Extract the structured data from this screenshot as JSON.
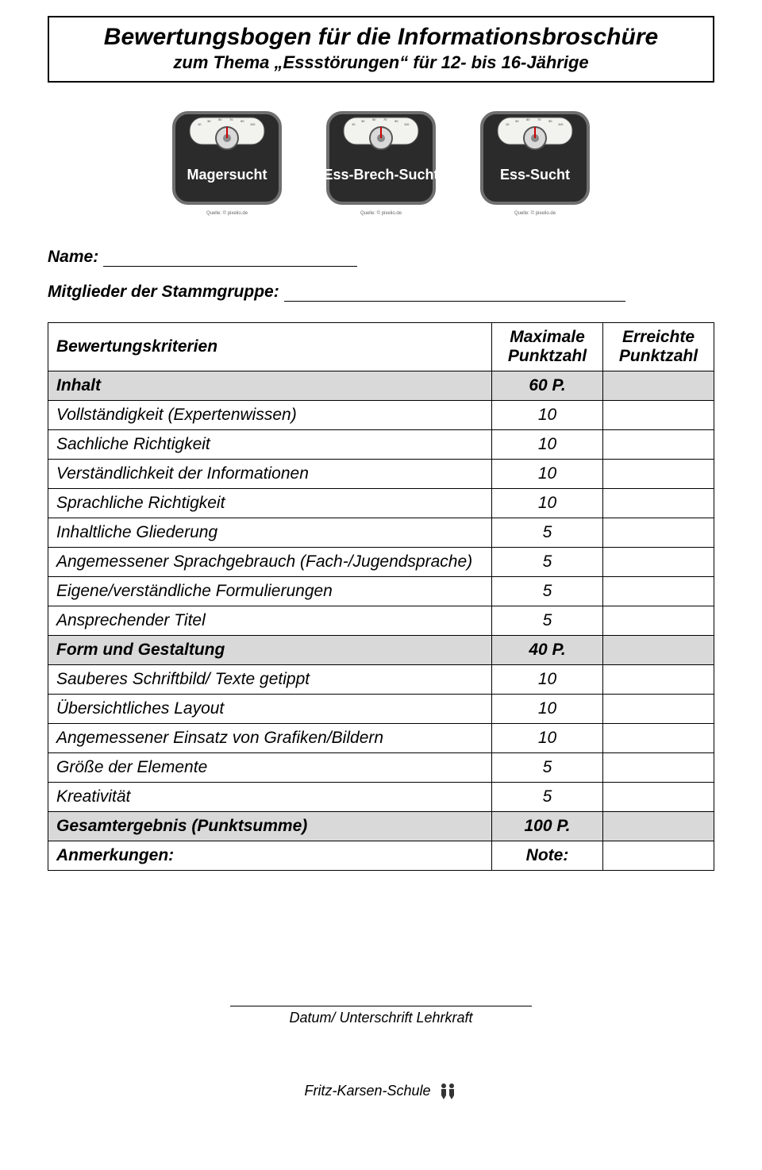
{
  "header": {
    "title": "Bewertungsbogen für die Informationsbroschüre",
    "subtitle": "zum Thema „Essstörungen“ für 12- bis 16-Jährige"
  },
  "scales": [
    {
      "label": "Magersucht",
      "caption": "Quelle: © pixelio.de"
    },
    {
      "label": "Ess-Brech-Sucht",
      "caption": "Quelle: © pixelio.de"
    },
    {
      "label": "Ess-Sucht",
      "caption": "Quelle: © pixelio.de"
    }
  ],
  "fields": {
    "name_label": "Name:",
    "group_label": "Mitglieder der Stammgruppe:"
  },
  "table": {
    "head": {
      "criteria": "Bewertungskriterien",
      "max": "Maximale Punktzahl",
      "got": "Erreichte Punktzahl"
    },
    "rows": [
      {
        "type": "section",
        "label": "Inhalt",
        "max": "60 P."
      },
      {
        "type": "item",
        "label": "Vollständigkeit (Expertenwissen)",
        "max": "10"
      },
      {
        "type": "item",
        "label": "Sachliche Richtigkeit",
        "max": "10"
      },
      {
        "type": "item",
        "label": "Verständlichkeit der Informationen",
        "max": "10"
      },
      {
        "type": "item",
        "label": "Sprachliche Richtigkeit",
        "max": "10"
      },
      {
        "type": "item",
        "label": "Inhaltliche Gliederung",
        "max": "5"
      },
      {
        "type": "item",
        "label": "Angemessener Sprachgebrauch (Fach-/Jugendsprache)",
        "max": "5"
      },
      {
        "type": "item",
        "label": "Eigene/verständliche Formulierungen",
        "max": "5"
      },
      {
        "type": "item",
        "label": "Ansprechender Titel",
        "max": "5"
      },
      {
        "type": "section",
        "label": "Form und Gestaltung",
        "max": "40 P."
      },
      {
        "type": "item",
        "label": "Sauberes Schriftbild/ Texte getippt",
        "max": "10"
      },
      {
        "type": "item",
        "label": "Übersichtliches Layout",
        "max": "10"
      },
      {
        "type": "item",
        "label": "Angemessener Einsatz von Grafiken/Bildern",
        "max": "10"
      },
      {
        "type": "item",
        "label": "Größe der Elemente",
        "max": "5"
      },
      {
        "type": "item",
        "label": "Kreativität",
        "max": "5"
      },
      {
        "type": "section",
        "label": "Gesamtergebnis (Punktsumme)",
        "max": "100 P."
      },
      {
        "type": "summary",
        "label": "Anmerkungen:",
        "max": "Note:"
      }
    ]
  },
  "signature": {
    "caption": "Datum/ Unterschrift Lehrkraft"
  },
  "footer": {
    "school": "Fritz-Karsen-Schule"
  },
  "style": {
    "section_bg": "#d9d9d9",
    "border_color": "#000000",
    "scale_body_fill": "#2b2b2b",
    "scale_body_stroke": "#6f6f6f",
    "scale_dial_fill": "#d9d9d9",
    "scale_dial_stroke": "#555555",
    "scale_label_font": "Arial Black, Arial, sans-serif"
  }
}
